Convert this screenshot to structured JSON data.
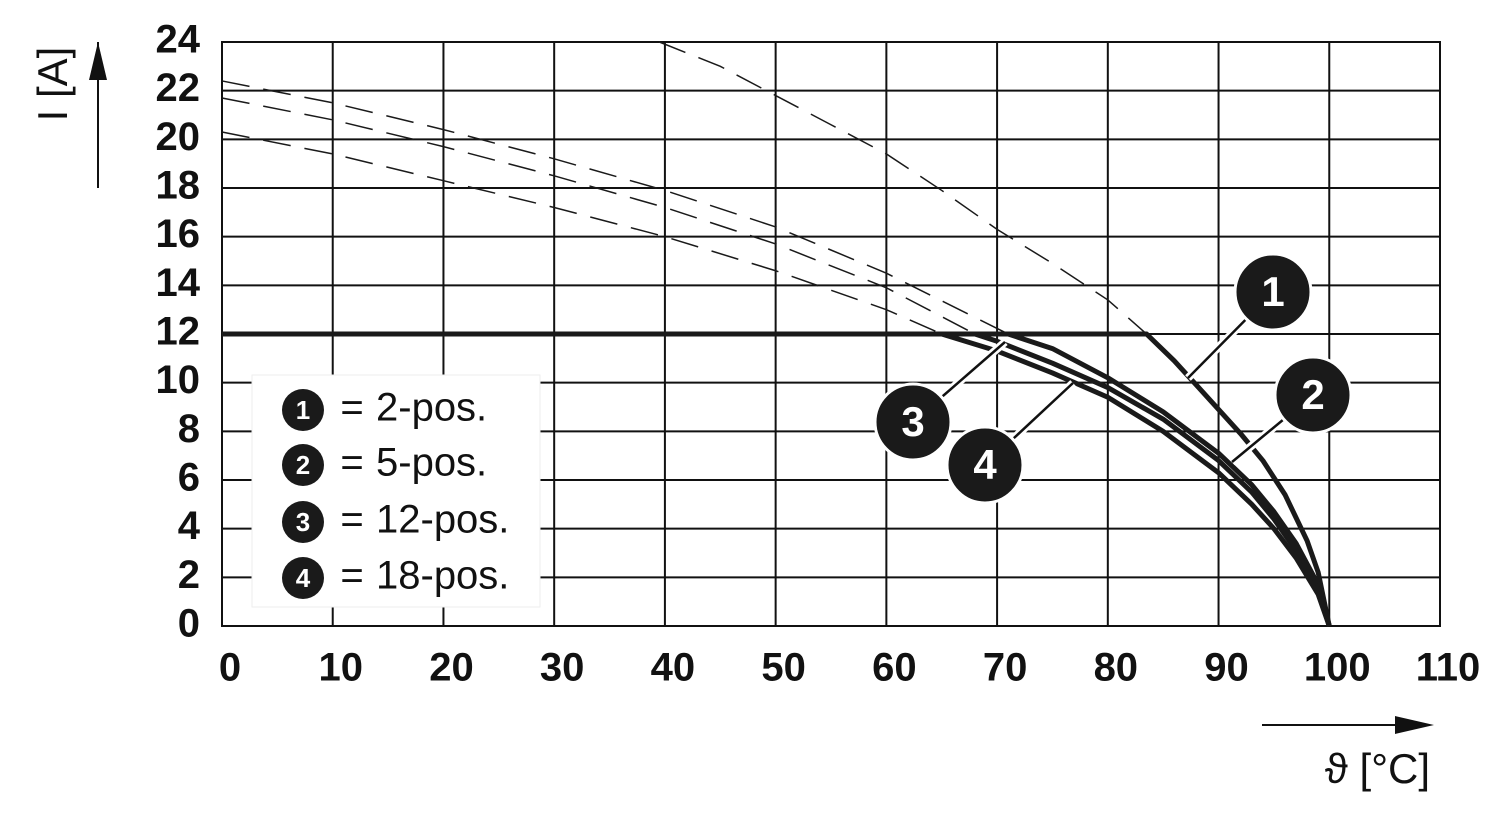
{
  "chart_data": {
    "type": "line",
    "y_label": "I [A]",
    "x_label": "ϑ [°C]",
    "xlim": [
      0,
      110
    ],
    "xticks": [
      0,
      10,
      20,
      30,
      40,
      50,
      60,
      70,
      80,
      90,
      100,
      110
    ],
    "ylim": [
      0,
      24
    ],
    "yticks": [
      0,
      2,
      4,
      6,
      8,
      10,
      12,
      14,
      16,
      18,
      20,
      22,
      24
    ],
    "grid": true,
    "legend_position": "lower left",
    "legend_separator": "=",
    "series": [
      {
        "name": "2-pos.",
        "marker": "1",
        "color": "#1a1a1a",
        "x": [
          0,
          83.5,
          86,
          88,
          90,
          92,
          94,
          96,
          98,
          99,
          100
        ],
        "values": [
          12,
          12,
          10.9,
          9.9,
          8.9,
          7.9,
          6.8,
          5.4,
          3.5,
          2.2,
          0
        ],
        "extension": {
          "x": [
            39.5,
            45,
            50,
            55,
            60,
            65,
            70,
            75,
            80,
            83.5
          ],
          "values": [
            24,
            23,
            21.8,
            20.6,
            19.4,
            17.9,
            16.3,
            14.9,
            13.4,
            12
          ]
        }
      },
      {
        "name": "5-pos.",
        "marker": "2",
        "color": "#1a1a1a",
        "x": [
          0,
          71,
          75,
          80,
          85,
          90,
          93,
          95,
          97,
          99,
          100
        ],
        "values": [
          12,
          12,
          11.4,
          10.2,
          8.8,
          7.1,
          5.8,
          4.7,
          3.4,
          1.7,
          0
        ],
        "extension": {
          "x": [
            0,
            10,
            20,
            30,
            40,
            50,
            60,
            71
          ],
          "values": [
            22.4,
            21.5,
            20.4,
            19.2,
            17.9,
            16.4,
            14.5,
            12
          ]
        }
      },
      {
        "name": "12-pos.",
        "marker": "3",
        "color": "#1a1a1a",
        "x": [
          0,
          68,
          70,
          75,
          80,
          85,
          90,
          93,
          95,
          97,
          99,
          100
        ],
        "values": [
          12,
          12,
          11.7,
          10.8,
          9.8,
          8.5,
          6.8,
          5.5,
          4.4,
          3.1,
          1.5,
          0
        ],
        "extension": {
          "x": [
            0,
            10,
            20,
            30,
            40,
            50,
            60,
            68
          ],
          "values": [
            21.7,
            20.8,
            19.7,
            18.5,
            17.2,
            15.7,
            13.9,
            12
          ]
        }
      },
      {
        "name": "18-pos.",
        "marker": "4",
        "color": "#1a1a1a",
        "x": [
          0,
          65,
          70,
          75,
          80,
          85,
          90,
          93,
          95,
          97,
          99,
          100
        ],
        "values": [
          12,
          12,
          11.3,
          10.4,
          9.4,
          8.0,
          6.3,
          5.0,
          4.0,
          2.8,
          1.3,
          0
        ],
        "extension": {
          "x": [
            0,
            10,
            20,
            30,
            40,
            50,
            60,
            65
          ],
          "values": [
            20.3,
            19.4,
            18.3,
            17.2,
            16.0,
            14.6,
            13.0,
            12
          ]
        }
      }
    ]
  }
}
